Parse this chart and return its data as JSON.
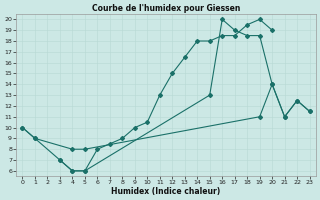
{
  "title": "Courbe de l'humidex pour Giessen",
  "xlabel": "Humidex (Indice chaleur)",
  "bg_color": "#cce8e5",
  "line_color": "#1a7068",
  "grid_major_color": "#b8d8d4",
  "grid_minor_color": "#d4eceb",
  "xlim": [
    -0.5,
    23.5
  ],
  "ylim": [
    5.5,
    20.5
  ],
  "xticks": [
    0,
    1,
    2,
    3,
    4,
    5,
    6,
    7,
    8,
    9,
    10,
    11,
    12,
    13,
    14,
    15,
    16,
    17,
    18,
    19,
    20,
    21,
    22,
    23
  ],
  "yticks": [
    6,
    7,
    8,
    9,
    10,
    11,
    12,
    13,
    14,
    15,
    16,
    17,
    18,
    19,
    20
  ],
  "curve1_x": [
    0,
    1,
    3,
    4,
    5,
    6,
    7,
    8,
    9,
    10,
    11,
    12,
    13,
    14,
    15,
    16,
    17,
    18,
    19,
    20
  ],
  "curve1_y": [
    10,
    9,
    7,
    6,
    6,
    8,
    8.5,
    9,
    10,
    10.5,
    13,
    15,
    16.5,
    18,
    18,
    18.5,
    18.5,
    19.5,
    20,
    19
  ],
  "curve2_x": [
    3,
    4,
    5,
    15,
    16,
    17,
    18,
    19,
    20,
    21,
    22,
    23
  ],
  "curve2_y": [
    7,
    6,
    6,
    13,
    20,
    19,
    18.5,
    18.5,
    14,
    11,
    12.5,
    11.5
  ],
  "curve3_x": [
    0,
    1,
    4,
    5,
    19,
    20,
    21,
    22,
    23
  ],
  "curve3_y": [
    10,
    9,
    8,
    8,
    11,
    14,
    11,
    12.5,
    11.5
  ]
}
